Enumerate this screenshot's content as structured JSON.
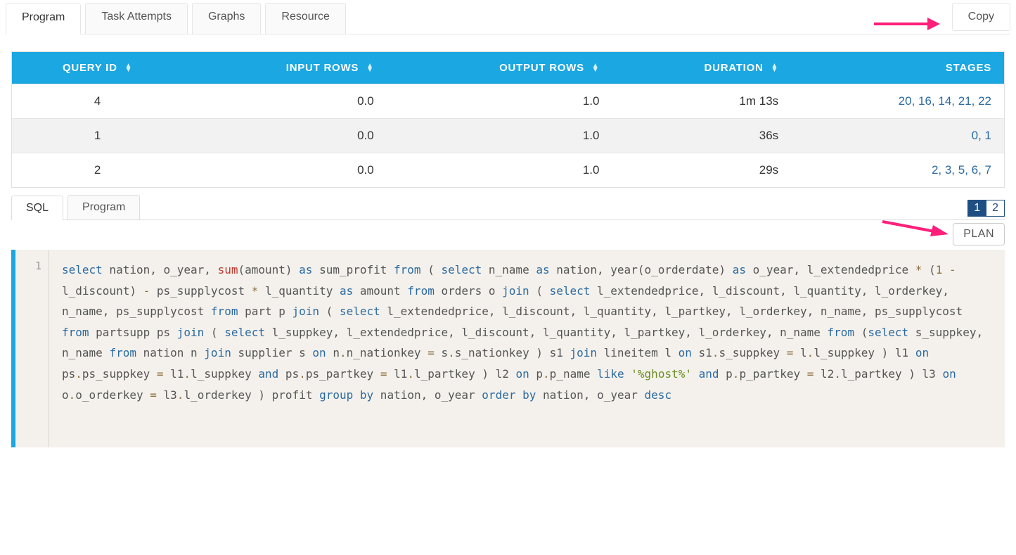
{
  "colors": {
    "header_bg": "#1aa7e2",
    "header_text": "#ffffff",
    "row_alt_bg": "#f2f2f2",
    "link": "#2b6aa0",
    "border": "#e6e6e6",
    "arrow": "#ff1f7a",
    "code_bg": "#f4f1ec",
    "code_accent": "#1aa7e2",
    "code_kw": "#2b6aa0",
    "code_fn": "#c0392b",
    "code_op": "#8a6d3b",
    "code_str": "#6b8e23"
  },
  "top_tabs": {
    "items": [
      "Program",
      "Task Attempts",
      "Graphs",
      "Resource"
    ],
    "active_index": 0,
    "copy_label": "Copy"
  },
  "table": {
    "columns": [
      {
        "key": "query_id",
        "label": "QUERY ID",
        "align": "center",
        "sortable": true
      },
      {
        "key": "input_rows",
        "label": "INPUT ROWS",
        "align": "right",
        "sortable": true
      },
      {
        "key": "output_rows",
        "label": "OUTPUT ROWS",
        "align": "right",
        "sortable": true
      },
      {
        "key": "duration",
        "label": "DURATION",
        "align": "right",
        "sortable": true,
        "sorted": "desc"
      },
      {
        "key": "stages",
        "label": "STAGES",
        "align": "right",
        "sortable": false
      }
    ],
    "rows": [
      {
        "query_id": "4",
        "input_rows": "0.0",
        "output_rows": "1.0",
        "duration": "1m 13s",
        "stages": "20, 16, 14, 21, 22"
      },
      {
        "query_id": "1",
        "input_rows": "0.0",
        "output_rows": "1.0",
        "duration": "36s",
        "stages": "0, 1"
      },
      {
        "query_id": "2",
        "input_rows": "0.0",
        "output_rows": "1.0",
        "duration": "29s",
        "stages": "2, 3, 5, 6, 7"
      }
    ]
  },
  "secondary_tabs": {
    "items": [
      "SQL",
      "Program"
    ],
    "active_index": 0,
    "pager": {
      "pages": [
        "1",
        "2"
      ],
      "active_index": 0
    },
    "plan_label": "PLAN"
  },
  "editor": {
    "line_number": "1",
    "tokens": [
      {
        "t": "select",
        "c": "kw"
      },
      {
        "t": "   nation,   o_year,   "
      },
      {
        "t": "sum",
        "c": "fn"
      },
      {
        "t": "(amount) "
      },
      {
        "t": "as",
        "c": "kw"
      },
      {
        "t": " sum_profit "
      },
      {
        "t": "from",
        "c": "kw"
      },
      {
        "t": "   ( "
      },
      {
        "t": "select",
        "c": "kw"
      },
      {
        "t": " n_name "
      },
      {
        "t": "as",
        "c": "kw"
      },
      {
        "t": " nation, year(o_orderdate) "
      },
      {
        "t": "as",
        "c": "kw"
      },
      {
        "t": " o_year, l_extendedprice "
      },
      {
        "t": "*",
        "c": "op"
      },
      {
        "t": " ("
      },
      {
        "t": "1",
        "c": "op"
      },
      {
        "t": " "
      },
      {
        "t": "-",
        "c": "op"
      },
      {
        "t": " l_discount) "
      },
      {
        "t": "-",
        "c": "op"
      },
      {
        "t": "  ps_supplycost "
      },
      {
        "t": "*",
        "c": "op"
      },
      {
        "t": " l_quantity "
      },
      {
        "t": "as",
        "c": "kw"
      },
      {
        "t": " amount     "
      },
      {
        "t": "from",
        "c": "kw"
      },
      {
        "t": " orders o "
      },
      {
        "t": "join",
        "c": "kw"
      },
      {
        "t": " ( "
      },
      {
        "t": "select",
        "c": "kw"
      },
      {
        "t": " l_extendedprice, l_discount, l_quantity, l_orderkey, n_name, ps_supplycost "
      },
      {
        "t": "from",
        "c": "kw"
      },
      {
        "t": " part p "
      },
      {
        "t": "join",
        "c": "kw"
      },
      {
        "t": " ( "
      },
      {
        "t": "select",
        "c": "kw"
      },
      {
        "t": " l_extendedprice, l_discount, l_quantity, l_partkey, l_orderkey, n_name, ps_supplycost "
      },
      {
        "t": "from",
        "c": "kw"
      },
      {
        "t": " partsupp ps "
      },
      {
        "t": "join",
        "c": "kw"
      },
      {
        "t": " ( "
      },
      {
        "t": "select",
        "c": "kw"
      },
      {
        "t": " l_suppkey, l_extendedprice, l_discount, l_quantity, l_partkey, l_orderkey, n_name "
      },
      {
        "t": "from",
        "c": "kw"
      },
      {
        "t": " ("
      },
      {
        "t": "select",
        "c": "kw"
      },
      {
        "t": " s_suppkey, n_name "
      },
      {
        "t": "from",
        "c": "kw"
      },
      {
        "t": " nation n "
      },
      {
        "t": "join",
        "c": "kw"
      },
      {
        "t": " supplier s "
      },
      {
        "t": "on",
        "c": "kw"
      },
      {
        "t": " n"
      },
      {
        "t": ".",
        "c": "op"
      },
      {
        "t": "n_nationkey "
      },
      {
        "t": "=",
        "c": "op"
      },
      {
        "t": " s"
      },
      {
        "t": ".",
        "c": "op"
      },
      {
        "t": "s_nationkey ) s1 "
      },
      {
        "t": "join",
        "c": "kw"
      },
      {
        "t": " lineitem l "
      },
      {
        "t": "on",
        "c": "kw"
      },
      {
        "t": " s1"
      },
      {
        "t": ".",
        "c": "op"
      },
      {
        "t": "s_suppkey "
      },
      {
        "t": "=",
        "c": "op"
      },
      {
        "t": " l"
      },
      {
        "t": ".",
        "c": "op"
      },
      {
        "t": "l_suppkey ) l1 "
      },
      {
        "t": "on",
        "c": "kw"
      },
      {
        "t": " ps"
      },
      {
        "t": ".",
        "c": "op"
      },
      {
        "t": "ps_suppkey "
      },
      {
        "t": "=",
        "c": "op"
      },
      {
        "t": " l1"
      },
      {
        "t": ".",
        "c": "op"
      },
      {
        "t": "l_suppkey "
      },
      {
        "t": "and",
        "c": "kw"
      },
      {
        "t": " ps"
      },
      {
        "t": ".",
        "c": "op"
      },
      {
        "t": "ps_partkey "
      },
      {
        "t": "=",
        "c": "op"
      },
      {
        "t": " l1"
      },
      {
        "t": ".",
        "c": "op"
      },
      {
        "t": "l_partkey ) l2 "
      },
      {
        "t": "on",
        "c": "kw"
      },
      {
        "t": " p"
      },
      {
        "t": ".",
        "c": "op"
      },
      {
        "t": "p_name "
      },
      {
        "t": "like",
        "c": "kw"
      },
      {
        "t": " "
      },
      {
        "t": "'%ghost%'",
        "c": "str"
      },
      {
        "t": " "
      },
      {
        "t": "and",
        "c": "kw"
      },
      {
        "t": " p"
      },
      {
        "t": ".",
        "c": "op"
      },
      {
        "t": "p_partkey "
      },
      {
        "t": "=",
        "c": "op"
      },
      {
        "t": " l2"
      },
      {
        "t": ".",
        "c": "op"
      },
      {
        "t": "l_partkey ) l3 "
      },
      {
        "t": "on",
        "c": "kw"
      },
      {
        "t": " o"
      },
      {
        "t": ".",
        "c": "op"
      },
      {
        "t": "o_orderkey "
      },
      {
        "t": "=",
        "c": "op"
      },
      {
        "t": " l3"
      },
      {
        "t": ".",
        "c": "op"
      },
      {
        "t": "l_orderkey   ) profit "
      },
      {
        "t": "group",
        "c": "kw"
      },
      {
        "t": " "
      },
      {
        "t": "by",
        "c": "kw"
      },
      {
        "t": " nation, o_year "
      },
      {
        "t": "order",
        "c": "kw"
      },
      {
        "t": " "
      },
      {
        "t": "by",
        "c": "kw"
      },
      {
        "t": " nation, o_year "
      },
      {
        "t": "desc",
        "c": "kw"
      }
    ]
  }
}
